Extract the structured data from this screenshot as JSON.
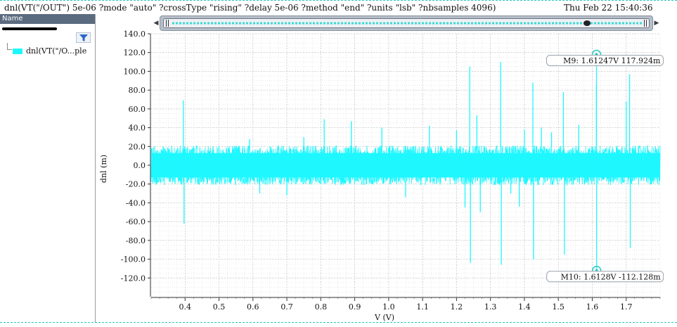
{
  "header": {
    "expression": "dnl(VT(\"/OUT\") 5e-06 ?mode \"auto\" ?crossType \"rising\" ?delay 5e-06 ?method \"end\" ?units \"lsb\" ?nbsamples 4096)",
    "timestamp": "Thu Feb 22 15:40:36"
  },
  "legend_panel": {
    "header_label": "Name",
    "filter_icon": "filter-icon",
    "items": [
      {
        "label": "dnl(VT(\"/O...ple",
        "color": "#1ff7ff"
      }
    ]
  },
  "scrollbar": {
    "left_icon": "arrow-left-icon",
    "right_icon": "arrow-right-icon"
  },
  "chart_data": {
    "type": "line",
    "xlabel": "V (V)",
    "ylabel": "dnl (m)",
    "xlim": [
      0.3,
      1.8
    ],
    "ylim": [
      -140,
      140
    ],
    "x_ticks": [
      "0.4",
      "0.5",
      "0.6",
      "0.7",
      "0.8",
      "0.9",
      "1.0",
      "1.1",
      "1.2",
      "1.3",
      "1.4",
      "1.5",
      "1.6",
      "1.7"
    ],
    "y_ticks": [
      "140.0",
      "120.0",
      "100.0",
      "80.0",
      "60.0",
      "40.0",
      "20.0",
      "0.0",
      "-20.0",
      "-40.0",
      "-60.0",
      "-80.0",
      "-100.0",
      "-120.0"
    ],
    "grid": true,
    "series": [
      {
        "color": "#1ff7ff",
        "noise_band": [
          -20,
          20
        ],
        "spikes": [
          {
            "x": 0.395,
            "y": 69
          },
          {
            "x": 0.397,
            "y": -62
          },
          {
            "x": 0.59,
            "y": 28
          },
          {
            "x": 0.62,
            "y": -30
          },
          {
            "x": 0.7,
            "y": -32
          },
          {
            "x": 0.75,
            "y": 30
          },
          {
            "x": 0.81,
            "y": 49
          },
          {
            "x": 0.89,
            "y": 47
          },
          {
            "x": 0.98,
            "y": 40
          },
          {
            "x": 1.05,
            "y": -34
          },
          {
            "x": 1.12,
            "y": 42
          },
          {
            "x": 1.2,
            "y": 37
          },
          {
            "x": 1.225,
            "y": -45
          },
          {
            "x": 1.239,
            "y": 105
          },
          {
            "x": 1.241,
            "y": -104
          },
          {
            "x": 1.26,
            "y": 53
          },
          {
            "x": 1.27,
            "y": -50
          },
          {
            "x": 1.33,
            "y": 110
          },
          {
            "x": 1.332,
            "y": -106
          },
          {
            "x": 1.36,
            "y": -30
          },
          {
            "x": 1.385,
            "y": -44
          },
          {
            "x": 1.4,
            "y": 38
          },
          {
            "x": 1.425,
            "y": 88
          },
          {
            "x": 1.427,
            "y": -100
          },
          {
            "x": 1.45,
            "y": 40
          },
          {
            "x": 1.48,
            "y": 35
          },
          {
            "x": 1.515,
            "y": 78
          },
          {
            "x": 1.518,
            "y": -95
          },
          {
            "x": 1.56,
            "y": 43
          },
          {
            "x": 1.612,
            "y": 85
          },
          {
            "x": 1.6125,
            "y": 117.924
          },
          {
            "x": 1.6128,
            "y": -112.128
          },
          {
            "x": 1.7,
            "y": 68
          },
          {
            "x": 1.71,
            "y": 97
          },
          {
            "x": 1.712,
            "y": -88
          }
        ]
      }
    ],
    "markers": [
      {
        "label": "M9: 1.61247V 117.924m",
        "x": 1.61247,
        "y": 117.924
      },
      {
        "label": "M10: 1.6128V -112.128m",
        "x": 1.6128,
        "y": -112.128
      }
    ]
  }
}
